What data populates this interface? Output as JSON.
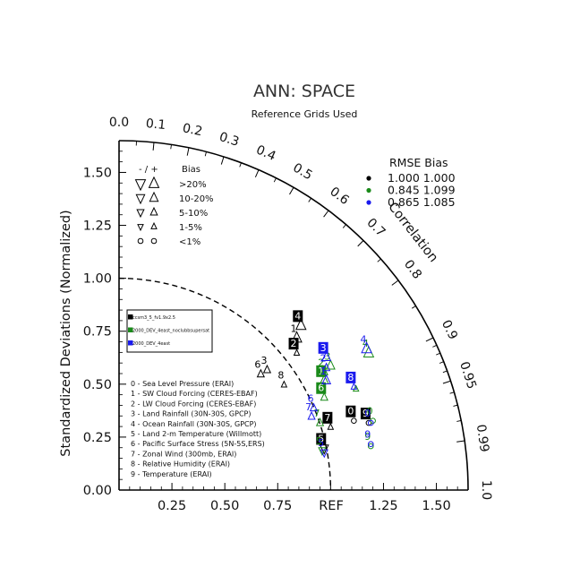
{
  "chart_data": {
    "type": "scatter",
    "subtype": "taylor-diagram",
    "title": "ANN: SPACE",
    "subtitle": "Reference Grids Used",
    "ylabel": "Standardized Deviations (Normalized)",
    "correlation_label": "Correlation",
    "ref_label": "REF",
    "std_range": [
      0,
      1.65
    ],
    "x_ticks": [
      "0.25",
      "0.50",
      "0.75",
      "1.25",
      "1.50"
    ],
    "x_tick_values": [
      0.25,
      0.5,
      0.75,
      1.25,
      1.5
    ],
    "y_ticks": [
      "0.00",
      "0.25",
      "0.50",
      "0.75",
      "1.00",
      "1.25",
      "1.50"
    ],
    "y_tick_values": [
      0,
      0.25,
      0.5,
      0.75,
      1.0,
      1.25,
      1.5
    ],
    "corr_ticks": [
      {
        "v": 0.0,
        "t": "0.0"
      },
      {
        "v": 0.1,
        "t": "0.1"
      },
      {
        "v": 0.2,
        "t": "0.2"
      },
      {
        "v": 0.3,
        "t": "0.3"
      },
      {
        "v": 0.4,
        "t": "0.4"
      },
      {
        "v": 0.5,
        "t": "0.5"
      },
      {
        "v": 0.6,
        "t": "0.6"
      },
      {
        "v": 0.7,
        "t": "0.7"
      },
      {
        "v": 0.8,
        "t": "0.8"
      },
      {
        "v": 0.9,
        "t": "0.9"
      },
      {
        "v": 0.95,
        "t": "0.95"
      },
      {
        "v": 0.99,
        "t": "0.99"
      },
      {
        "v": 1.0,
        "t": "1.0"
      }
    ],
    "corr_minor": [
      0.05,
      0.15,
      0.25,
      0.35,
      0.45,
      0.55,
      0.65,
      0.75,
      0.85,
      0.91,
      0.92,
      0.93,
      0.94,
      0.96,
      0.97,
      0.98
    ],
    "rmse_bias_table": {
      "header": "RMSE  Bias",
      "rows": [
        {
          "rmse": "1.000",
          "bias": "1.000",
          "color": "#000000"
        },
        {
          "rmse": "0.845",
          "bias": "1.099",
          "color": "#1a8a1a"
        },
        {
          "rmse": "0.865",
          "bias": "1.085",
          "color": "#1a1aee"
        }
      ]
    },
    "bias_legend": {
      "header_signs": "-  /  +",
      "header_label": "Bias",
      "rows": [
        {
          "label": ">20%",
          "size": 9
        },
        {
          "label": "10-20%",
          "size": 7.5
        },
        {
          "label": "5-10%",
          "size": 6
        },
        {
          "label": "1-5%",
          "size": 4.5
        },
        {
          "label": "<1%",
          "size": 3.5
        }
      ]
    },
    "case_legend": [
      {
        "name": "ccsm3_5_fv1.9x2.5",
        "color": "#000000"
      },
      {
        "name": "2000_DEV_4east_noclubbsupersat",
        "color": "#1a8a1a"
      },
      {
        "name": "2000_DEV_4east",
        "color": "#1a1aee"
      }
    ],
    "variable_legend": [
      "0 - Sea Level Pressure (ERAI)",
      "1 - SW Cloud Forcing (CERES-EBAF)",
      "2 - LW Cloud Forcing (CERES-EBAF)",
      "3 - Land Rainfall (30N-30S, GPCP)",
      "4 - Ocean Rainfall (30N-30S, GPCP)",
      "5 - Land 2-m Temperature (Willmott)",
      "6 - Pacific Surface Stress (5N-5S,ERS)",
      "7 - Zonal Wind (300mb, ERAI)",
      "8 - Relative Humidity (ERAI)",
      "9 - Temperature (ERAI)"
    ],
    "series": [
      {
        "name": "ccsm3_5_fv1.9x2.5",
        "color": "#000000",
        "points": [
          {
            "id": "0",
            "x": 1.11,
            "y": 0.31,
            "marker": "circle",
            "size": 3.5,
            "boxed": true
          },
          {
            "id": "1",
            "x": 0.84,
            "y": 0.7,
            "marker": "tri-up",
            "size": 9,
            "boxed": false
          },
          {
            "id": "2",
            "x": 0.84,
            "y": 0.63,
            "marker": "tri-up",
            "size": 4.5,
            "boxed": true
          },
          {
            "id": "3",
            "x": 0.7,
            "y": 0.55,
            "marker": "tri-up",
            "size": 6,
            "boxed": false
          },
          {
            "id": "4",
            "x": 0.86,
            "y": 0.76,
            "marker": "tri-up",
            "size": 9,
            "boxed": true
          },
          {
            "id": "5",
            "x": 0.97,
            "y": 0.18,
            "marker": "tri-down",
            "size": 7.5,
            "boxed": true
          },
          {
            "id": "6",
            "x": 0.67,
            "y": 0.53,
            "marker": "tri-up",
            "size": 6,
            "boxed": false
          },
          {
            "id": "7",
            "x": 1.0,
            "y": 0.28,
            "marker": "tri-up",
            "size": 4.5,
            "boxed": true
          },
          {
            "id": "8",
            "x": 0.78,
            "y": 0.48,
            "marker": "tri-up",
            "size": 4.5,
            "boxed": false
          },
          {
            "id": "9",
            "x": 1.18,
            "y": 0.3,
            "marker": "circle",
            "size": 3.5,
            "boxed": true
          }
        ]
      },
      {
        "name": "2000_DEV_4east_noclubbsupersat",
        "color": "#1a8a1a",
        "points": [
          {
            "id": "0",
            "x": 1.2,
            "y": 0.31,
            "marker": "circle",
            "size": 3.5,
            "boxed": false
          },
          {
            "id": "1",
            "x": 0.97,
            "y": 0.5,
            "marker": "tri-up",
            "size": 7.5,
            "boxed": true
          },
          {
            "id": "2",
            "x": 0.97,
            "y": 0.54,
            "marker": "tri-up",
            "size": 6,
            "boxed": false
          },
          {
            "id": "3",
            "x": 1.0,
            "y": 0.57,
            "marker": "tri-up",
            "size": 7.5,
            "boxed": false
          },
          {
            "id": "4",
            "x": 1.18,
            "y": 0.63,
            "marker": "tri-up",
            "size": 9,
            "boxed": false
          },
          {
            "id": "5",
            "x": 0.96,
            "y": 0.17,
            "marker": "tri-down",
            "size": 6,
            "boxed": false
          },
          {
            "id": "6",
            "x": 0.97,
            "y": 0.42,
            "marker": "tri-up",
            "size": 6,
            "boxed": true
          },
          {
            "id": "7",
            "x": 0.95,
            "y": 0.3,
            "marker": "tri-up",
            "size": 6,
            "boxed": false
          },
          {
            "id": "8",
            "x": 1.12,
            "y": 0.46,
            "marker": "tri-up",
            "size": 4.5,
            "boxed": false
          },
          {
            "id": "9",
            "x": 1.19,
            "y": 0.19,
            "marker": "circle",
            "size": 3.5,
            "boxed": false
          }
        ]
      },
      {
        "name": "2000_DEV_4east",
        "color": "#1a1aee",
        "points": [
          {
            "id": "0",
            "x": 1.19,
            "y": 0.3,
            "marker": "circle",
            "size": 3.5,
            "boxed": false
          },
          {
            "id": "1",
            "x": 0.98,
            "y": 0.5,
            "marker": "tri-up",
            "size": 7.5,
            "boxed": false
          },
          {
            "id": "2",
            "x": 0.98,
            "y": 0.56,
            "marker": "tri-up",
            "size": 6,
            "boxed": false
          },
          {
            "id": "3",
            "x": 0.98,
            "y": 0.61,
            "marker": "tri-up",
            "size": 7.5,
            "boxed": true
          },
          {
            "id": "4",
            "x": 1.17,
            "y": 0.65,
            "marker": "tri-up",
            "size": 9,
            "boxed": false
          },
          {
            "id": "5",
            "x": 0.97,
            "y": 0.16,
            "marker": "tri-down",
            "size": 6,
            "boxed": false
          },
          {
            "id": "6",
            "x": 0.92,
            "y": 0.37,
            "marker": "tri-up",
            "size": 6,
            "boxed": false
          },
          {
            "id": "7",
            "x": 0.91,
            "y": 0.33,
            "marker": "tri-up",
            "size": 6,
            "boxed": false
          },
          {
            "id": "8",
            "x": 1.11,
            "y": 0.47,
            "marker": "tri-up",
            "size": 4.5,
            "boxed": true
          },
          {
            "id": "9",
            "x": 1.19,
            "y": 0.2,
            "marker": "circle",
            "size": 3.5,
            "boxed": false
          }
        ]
      }
    ]
  }
}
